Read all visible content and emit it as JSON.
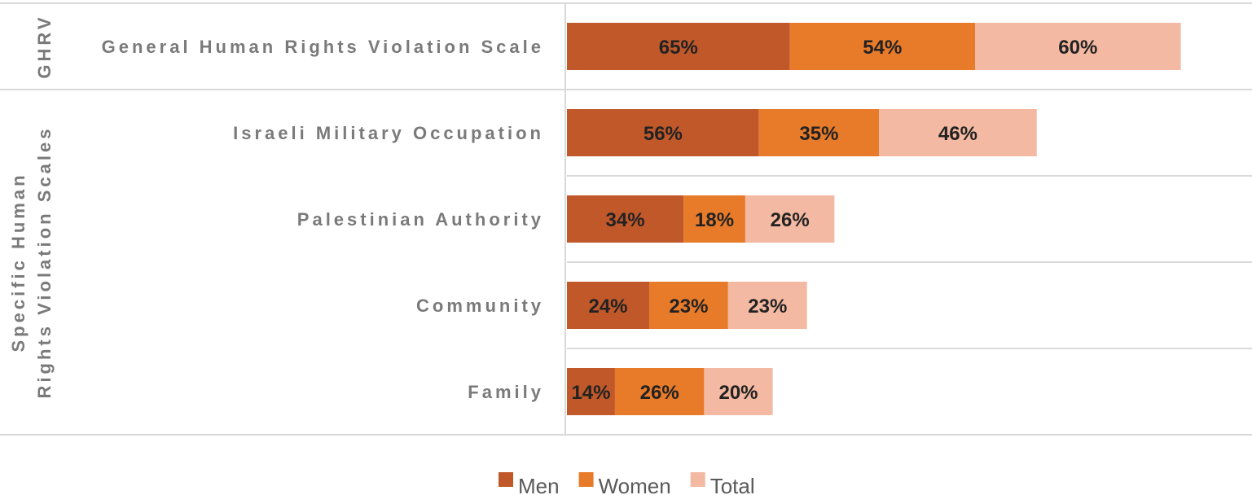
{
  "chart_data": {
    "type": "bar",
    "orientation": "horizontal",
    "stacked": true,
    "categories": [
      "General Human Rights Violation Scale",
      "Israeli Military Occupation",
      "Palestinian Authority",
      "Community",
      "Family"
    ],
    "groups": [
      {
        "label": "GHRV",
        "categories": [
          "General Human Rights Violation Scale"
        ]
      },
      {
        "label_lines": [
          "Specific Human",
          "Rights Violation Scales"
        ],
        "categories": [
          "Israeli Military Occupation",
          "Palestinian Authority",
          "Community",
          "Family"
        ]
      }
    ],
    "series": [
      {
        "name": "Men",
        "color": "#c0582a",
        "values": [
          65,
          56,
          34,
          24,
          14
        ],
        "labels": [
          "65%",
          "56%",
          "34%",
          "24%",
          "14%"
        ]
      },
      {
        "name": "Women",
        "color": "#e87b2a",
        "values": [
          54,
          35,
          18,
          23,
          26
        ],
        "labels": [
          "54%",
          "35%",
          "18%",
          "23%",
          "26%"
        ]
      },
      {
        "name": "Total",
        "color": "#f4b9a2",
        "values": [
          60,
          46,
          26,
          23,
          20
        ],
        "labels": [
          "60%",
          "46%",
          "26%",
          "23%",
          "20%"
        ]
      }
    ],
    "xlim": [
      0,
      200
    ],
    "legend_position": "bottom"
  }
}
